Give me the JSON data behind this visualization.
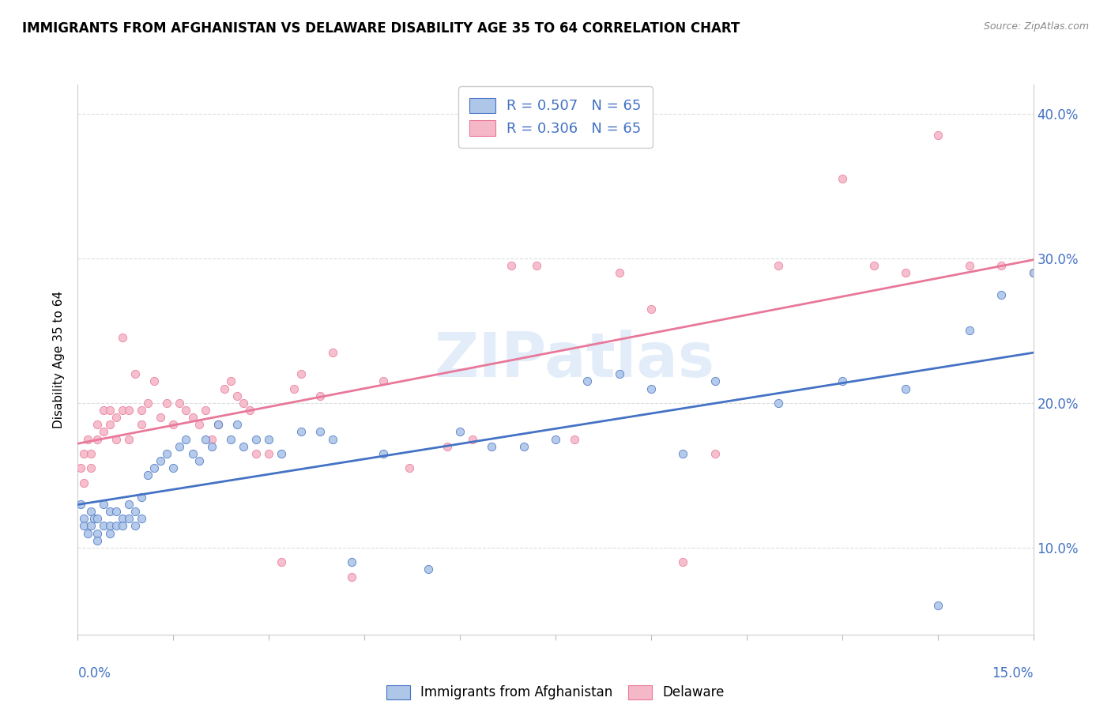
{
  "title": "IMMIGRANTS FROM AFGHANISTAN VS DELAWARE DISABILITY AGE 35 TO 64 CORRELATION CHART",
  "source": "Source: ZipAtlas.com",
  "ylabel": "Disability Age 35 to 64",
  "legend_blue_label": "R = 0.507   N = 65",
  "legend_pink_label": "R = 0.306   N = 65",
  "legend_bottom_blue": "Immigrants from Afghanistan",
  "legend_bottom_pink": "Delaware",
  "blue_color": "#aec6e8",
  "blue_line_color": "#4472c4",
  "pink_color": "#f5b8c8",
  "pink_line_color": "#e8789a",
  "watermark": "ZIPatlas",
  "xlim": [
    0.0,
    0.15
  ],
  "ylim": [
    0.04,
    0.42
  ],
  "y_tick_vals": [
    0.1,
    0.2,
    0.3,
    0.4
  ],
  "blue_points_x": [
    0.0005,
    0.001,
    0.001,
    0.0015,
    0.002,
    0.002,
    0.0025,
    0.003,
    0.003,
    0.003,
    0.004,
    0.004,
    0.005,
    0.005,
    0.005,
    0.006,
    0.006,
    0.007,
    0.007,
    0.008,
    0.008,
    0.009,
    0.009,
    0.01,
    0.01,
    0.011,
    0.012,
    0.013,
    0.014,
    0.015,
    0.016,
    0.017,
    0.018,
    0.019,
    0.02,
    0.021,
    0.022,
    0.024,
    0.025,
    0.026,
    0.028,
    0.03,
    0.032,
    0.035,
    0.038,
    0.04,
    0.043,
    0.048,
    0.055,
    0.06,
    0.065,
    0.07,
    0.075,
    0.08,
    0.085,
    0.09,
    0.095,
    0.1,
    0.11,
    0.12,
    0.13,
    0.135,
    0.14,
    0.145,
    0.15
  ],
  "blue_points_y": [
    0.13,
    0.12,
    0.115,
    0.11,
    0.125,
    0.115,
    0.12,
    0.11,
    0.12,
    0.105,
    0.115,
    0.13,
    0.11,
    0.125,
    0.115,
    0.115,
    0.125,
    0.12,
    0.115,
    0.12,
    0.13,
    0.125,
    0.115,
    0.135,
    0.12,
    0.15,
    0.155,
    0.16,
    0.165,
    0.155,
    0.17,
    0.175,
    0.165,
    0.16,
    0.175,
    0.17,
    0.185,
    0.175,
    0.185,
    0.17,
    0.175,
    0.175,
    0.165,
    0.18,
    0.18,
    0.175,
    0.09,
    0.165,
    0.085,
    0.18,
    0.17,
    0.17,
    0.175,
    0.215,
    0.22,
    0.21,
    0.165,
    0.215,
    0.2,
    0.215,
    0.21,
    0.06,
    0.25,
    0.275,
    0.29
  ],
  "pink_points_x": [
    0.0005,
    0.001,
    0.001,
    0.0015,
    0.002,
    0.002,
    0.003,
    0.003,
    0.004,
    0.004,
    0.005,
    0.005,
    0.006,
    0.006,
    0.007,
    0.007,
    0.008,
    0.008,
    0.009,
    0.01,
    0.01,
    0.011,
    0.012,
    0.013,
    0.014,
    0.015,
    0.016,
    0.017,
    0.018,
    0.019,
    0.02,
    0.021,
    0.022,
    0.023,
    0.024,
    0.025,
    0.026,
    0.027,
    0.028,
    0.03,
    0.032,
    0.034,
    0.035,
    0.038,
    0.04,
    0.043,
    0.048,
    0.052,
    0.058,
    0.062,
    0.068,
    0.072,
    0.078,
    0.085,
    0.09,
    0.095,
    0.1,
    0.11,
    0.12,
    0.125,
    0.13,
    0.135,
    0.14,
    0.145,
    0.15
  ],
  "pink_points_y": [
    0.155,
    0.145,
    0.165,
    0.175,
    0.165,
    0.155,
    0.175,
    0.185,
    0.18,
    0.195,
    0.185,
    0.195,
    0.175,
    0.19,
    0.195,
    0.245,
    0.175,
    0.195,
    0.22,
    0.185,
    0.195,
    0.2,
    0.215,
    0.19,
    0.2,
    0.185,
    0.2,
    0.195,
    0.19,
    0.185,
    0.195,
    0.175,
    0.185,
    0.21,
    0.215,
    0.205,
    0.2,
    0.195,
    0.165,
    0.165,
    0.09,
    0.21,
    0.22,
    0.205,
    0.235,
    0.08,
    0.215,
    0.155,
    0.17,
    0.175,
    0.295,
    0.295,
    0.175,
    0.29,
    0.265,
    0.09,
    0.165,
    0.295,
    0.355,
    0.295,
    0.29,
    0.385,
    0.295,
    0.295,
    0.29
  ]
}
